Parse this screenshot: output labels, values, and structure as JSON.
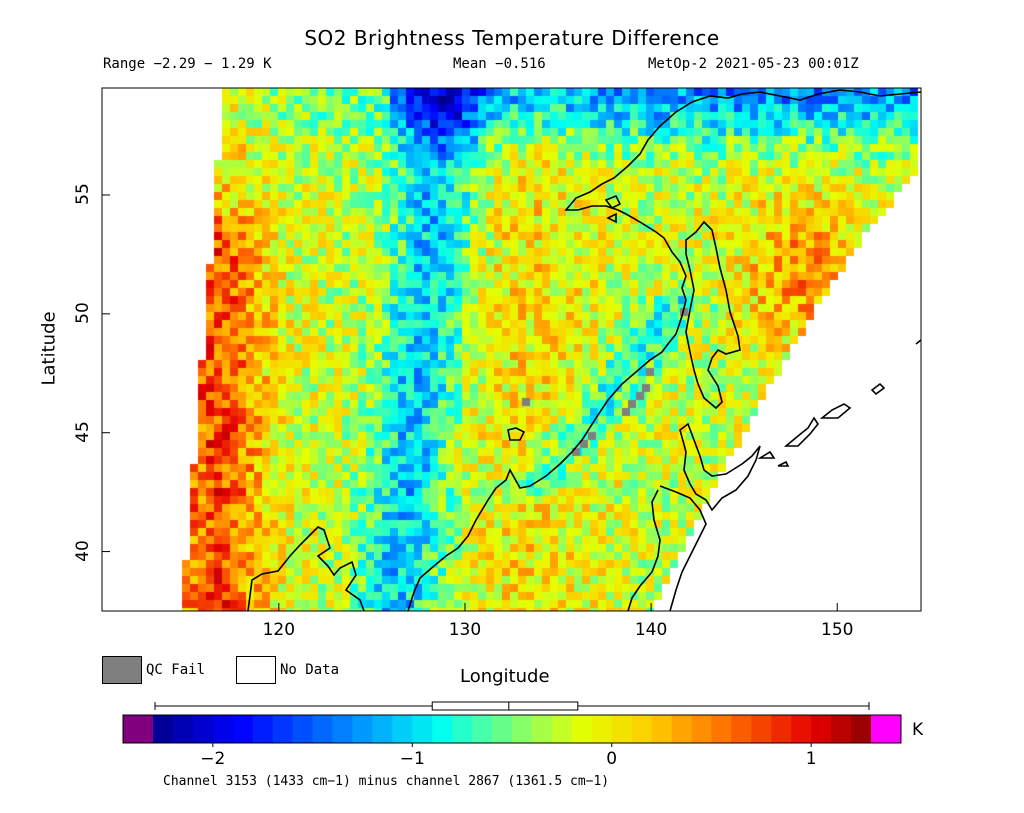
{
  "title": "SO2 Brightness Temperature Difference",
  "stats": {
    "range": "Range −2.29 − 1.29 K",
    "mean": "Mean −0.516",
    "satellite_time": "MetOp-2 2021-05-23 00:01Z"
  },
  "axes": {
    "x_label": "Longitude",
    "y_label": "Latitude",
    "x_ticks": [
      {
        "value": 120,
        "label": "120"
      },
      {
        "value": 130,
        "label": "130"
      },
      {
        "value": 140,
        "label": "140"
      },
      {
        "value": 150,
        "label": "150"
      }
    ],
    "y_ticks": [
      {
        "value": 40,
        "label": "40"
      },
      {
        "value": 45,
        "label": "45"
      },
      {
        "value": 50,
        "label": "50"
      },
      {
        "value": 55,
        "label": "55"
      }
    ],
    "lon_range": [
      110.5,
      154.5
    ],
    "lat_range": [
      37.5,
      59.5
    ]
  },
  "legend": {
    "qc_fail": {
      "label": "QC Fail",
      "color": "#7f7f7f"
    },
    "no_data": {
      "label": "No Data",
      "color": "#ffffff"
    }
  },
  "colorbar": {
    "unit": "K",
    "min": -2.3,
    "max": 1.3,
    "under_color": "#800080",
    "over_color": "#ff00ff",
    "ticks": [
      {
        "value": -2,
        "label": "−2"
      },
      {
        "value": -1,
        "label": "−1"
      },
      {
        "value": 0,
        "label": "0"
      },
      {
        "value": 1,
        "label": "1"
      }
    ],
    "box_plot": {
      "min": -2.29,
      "q1": -0.9,
      "median": -0.516,
      "q3": -0.17,
      "max": 1.29
    }
  },
  "footnote": "Channel 3153 (1433 cm−1) minus channel 2867 (1361.5 cm−1)",
  "colors": {
    "qc_fail": "#7f7f7f",
    "coastline": "#000000"
  }
}
